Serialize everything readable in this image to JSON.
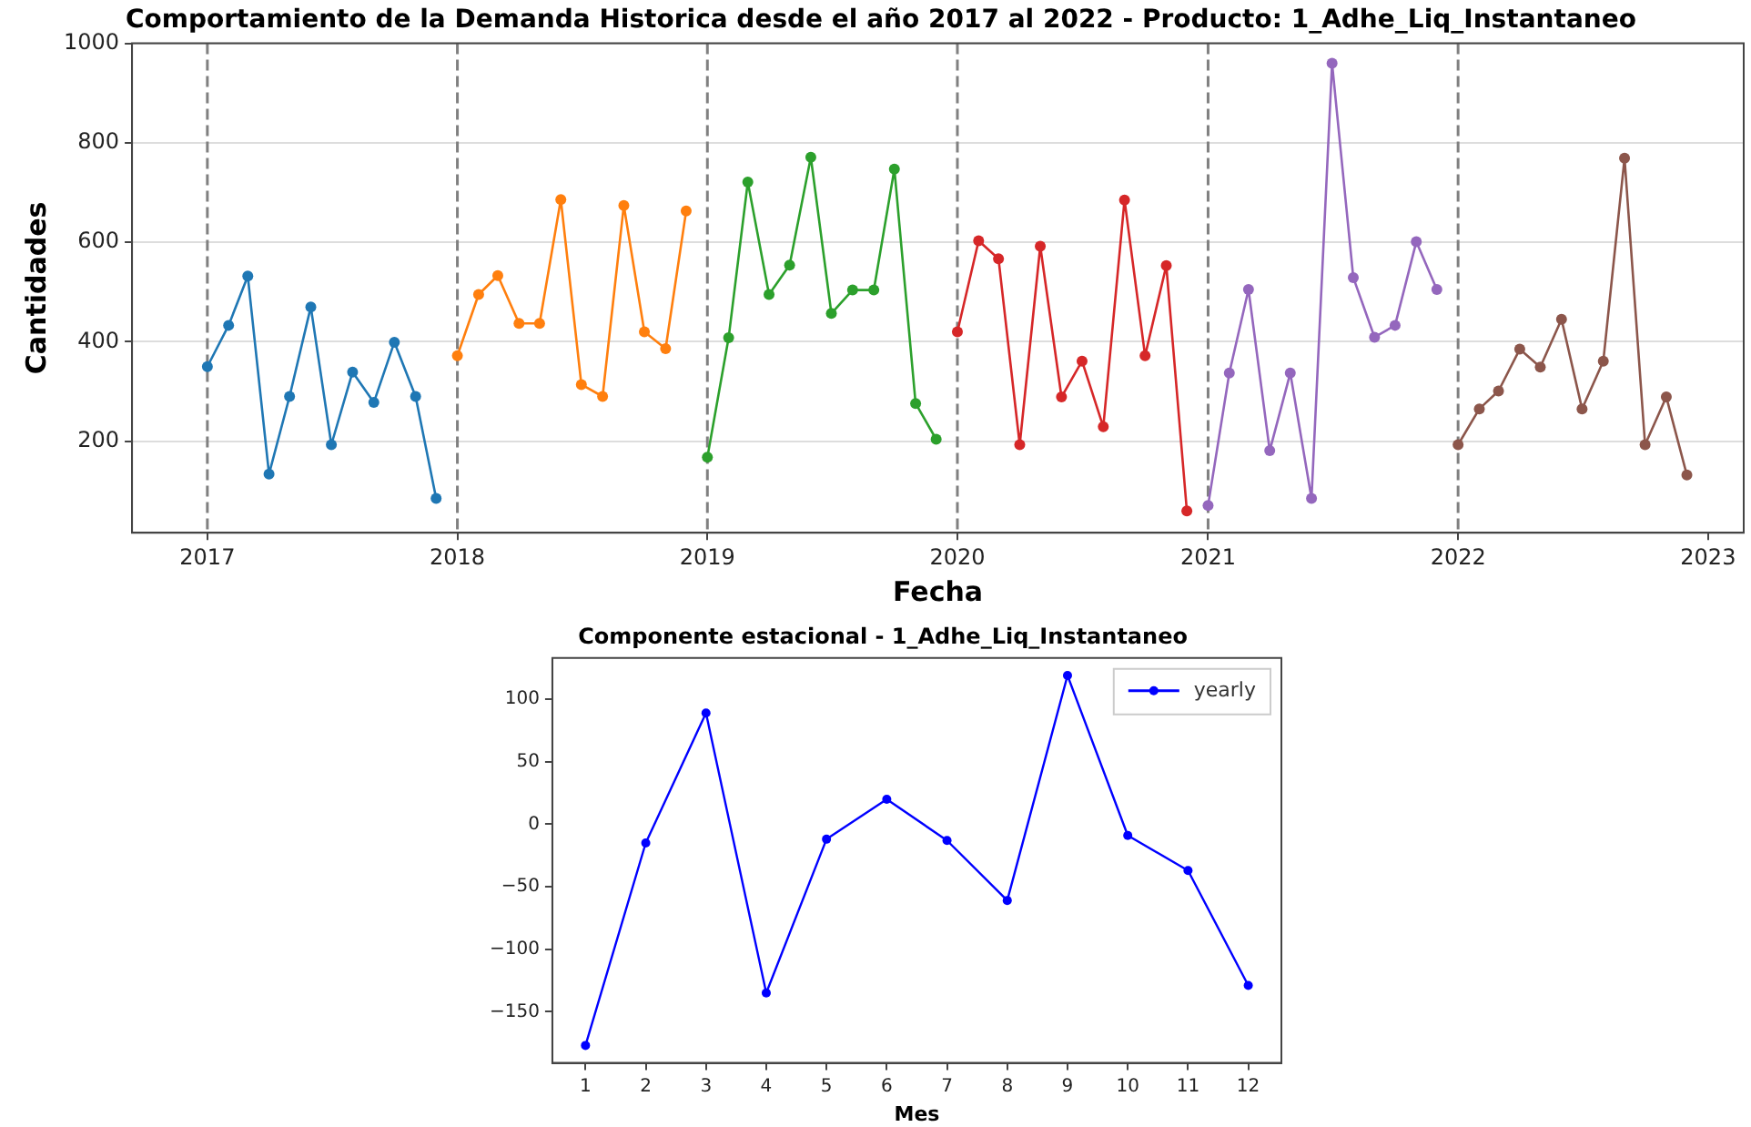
{
  "chart_data": [
    {
      "type": "line",
      "title": "Comportamiento de la Demanda Historica desde el año 2017 al 2022 - Producto: 1_Adhe_Liq_Instantaneo",
      "xlabel": "Fecha",
      "ylabel": "Cantidades",
      "xlim": [
        "2016-09-13",
        "2023-02-22"
      ],
      "xticks": [
        "2017",
        "2018",
        "2019",
        "2020",
        "2021",
        "2022",
        "2023"
      ],
      "ylim": [
        16,
        1000
      ],
      "yticks": [
        200,
        400,
        600,
        800,
        1000
      ],
      "grid": "y",
      "legend": false,
      "marker": "circle",
      "line_style": "solid",
      "ref_lines": [
        {
          "axis": "x",
          "value": "2017",
          "color": "#808080",
          "line_style": "dashed"
        },
        {
          "axis": "x",
          "value": "2018",
          "color": "#808080",
          "line_style": "dashed"
        },
        {
          "axis": "x",
          "value": "2019",
          "color": "#808080",
          "line_style": "dashed"
        },
        {
          "axis": "x",
          "value": "2020",
          "color": "#808080",
          "line_style": "dashed"
        },
        {
          "axis": "x",
          "value": "2021",
          "color": "#808080",
          "line_style": "dashed"
        },
        {
          "axis": "x",
          "value": "2022",
          "color": "#808080",
          "line_style": "dashed"
        }
      ],
      "series": [
        {
          "color": "#1f77b4",
          "x": [
            "2017-01",
            "2017-02",
            "2017-03",
            "2017-04",
            "2017-05",
            "2017-06",
            "2017-07",
            "2017-08",
            "2017-09",
            "2017-10",
            "2017-11",
            "2017-12"
          ],
          "values": [
            350,
            433,
            532,
            134,
            290,
            470,
            193,
            339,
            278,
            399,
            290,
            85
          ]
        },
        {
          "color": "#ff7f0e",
          "x": [
            "2018-01",
            "2018-02",
            "2018-03",
            "2018-04",
            "2018-05",
            "2018-06",
            "2018-07",
            "2018-08",
            "2018-09",
            "2018-10",
            "2018-11",
            "2018-12"
          ],
          "values": [
            372,
            495,
            533,
            437,
            437,
            686,
            314,
            290,
            674,
            420,
            386,
            663
          ]
        },
        {
          "color": "#2ca02c",
          "x": [
            "2019-01",
            "2019-02",
            "2019-03",
            "2019-04",
            "2019-05",
            "2019-06",
            "2019-07",
            "2019-08",
            "2019-09",
            "2019-10",
            "2019-11",
            "2019-12"
          ],
          "values": [
            168,
            408,
            721,
            495,
            554,
            771,
            457,
            504,
            504,
            747,
            276,
            204
          ]
        },
        {
          "color": "#d62728",
          "x": [
            "2020-01",
            "2020-02",
            "2020-03",
            "2020-04",
            "2020-05",
            "2020-06",
            "2020-07",
            "2020-08",
            "2020-09",
            "2020-10",
            "2020-11",
            "2020-12"
          ],
          "values": [
            420,
            603,
            567,
            193,
            592,
            289,
            361,
            229,
            685,
            372,
            553,
            60
          ]
        },
        {
          "color": "#9467bd",
          "x": [
            "2021-01",
            "2021-02",
            "2021-03",
            "2021-04",
            "2021-05",
            "2021-06",
            "2021-07",
            "2021-08",
            "2021-09",
            "2021-10",
            "2021-11",
            "2021-12"
          ],
          "values": [
            71,
            337,
            505,
            181,
            337,
            85,
            960,
            529,
            409,
            433,
            601,
            505
          ]
        },
        {
          "color": "#8c564b",
          "x": [
            "2022-01",
            "2022-02",
            "2022-03",
            "2022-04",
            "2022-05",
            "2022-06",
            "2022-07",
            "2022-08",
            "2022-09",
            "2022-10",
            "2022-11",
            "2022-12"
          ],
          "values": [
            193,
            265,
            301,
            385,
            349,
            445,
            265,
            361,
            769,
            193,
            289,
            132
          ]
        }
      ]
    },
    {
      "type": "line",
      "title": "Componente estacional - 1_Adhe_Liq_Instantaneo",
      "xlabel": "Mes",
      "x": [
        1,
        2,
        3,
        4,
        5,
        6,
        7,
        8,
        9,
        10,
        11,
        12
      ],
      "xlim": [
        0.45,
        12.55
      ],
      "xticks": [
        1,
        2,
        3,
        4,
        5,
        6,
        7,
        8,
        9,
        10,
        11,
        12
      ],
      "ylim": [
        -191,
        133
      ],
      "yticks": [
        -150,
        -100,
        -50,
        0,
        50,
        100
      ],
      "grid": false,
      "legend": "top right",
      "marker": "circle",
      "line_style": "solid",
      "series": [
        {
          "name": "yearly",
          "color": "#0000ff",
          "values": [
            -177,
            -15,
            89,
            -135,
            -12,
            20,
            -13,
            -61,
            119,
            -9,
            -37,
            -129
          ]
        }
      ]
    }
  ]
}
